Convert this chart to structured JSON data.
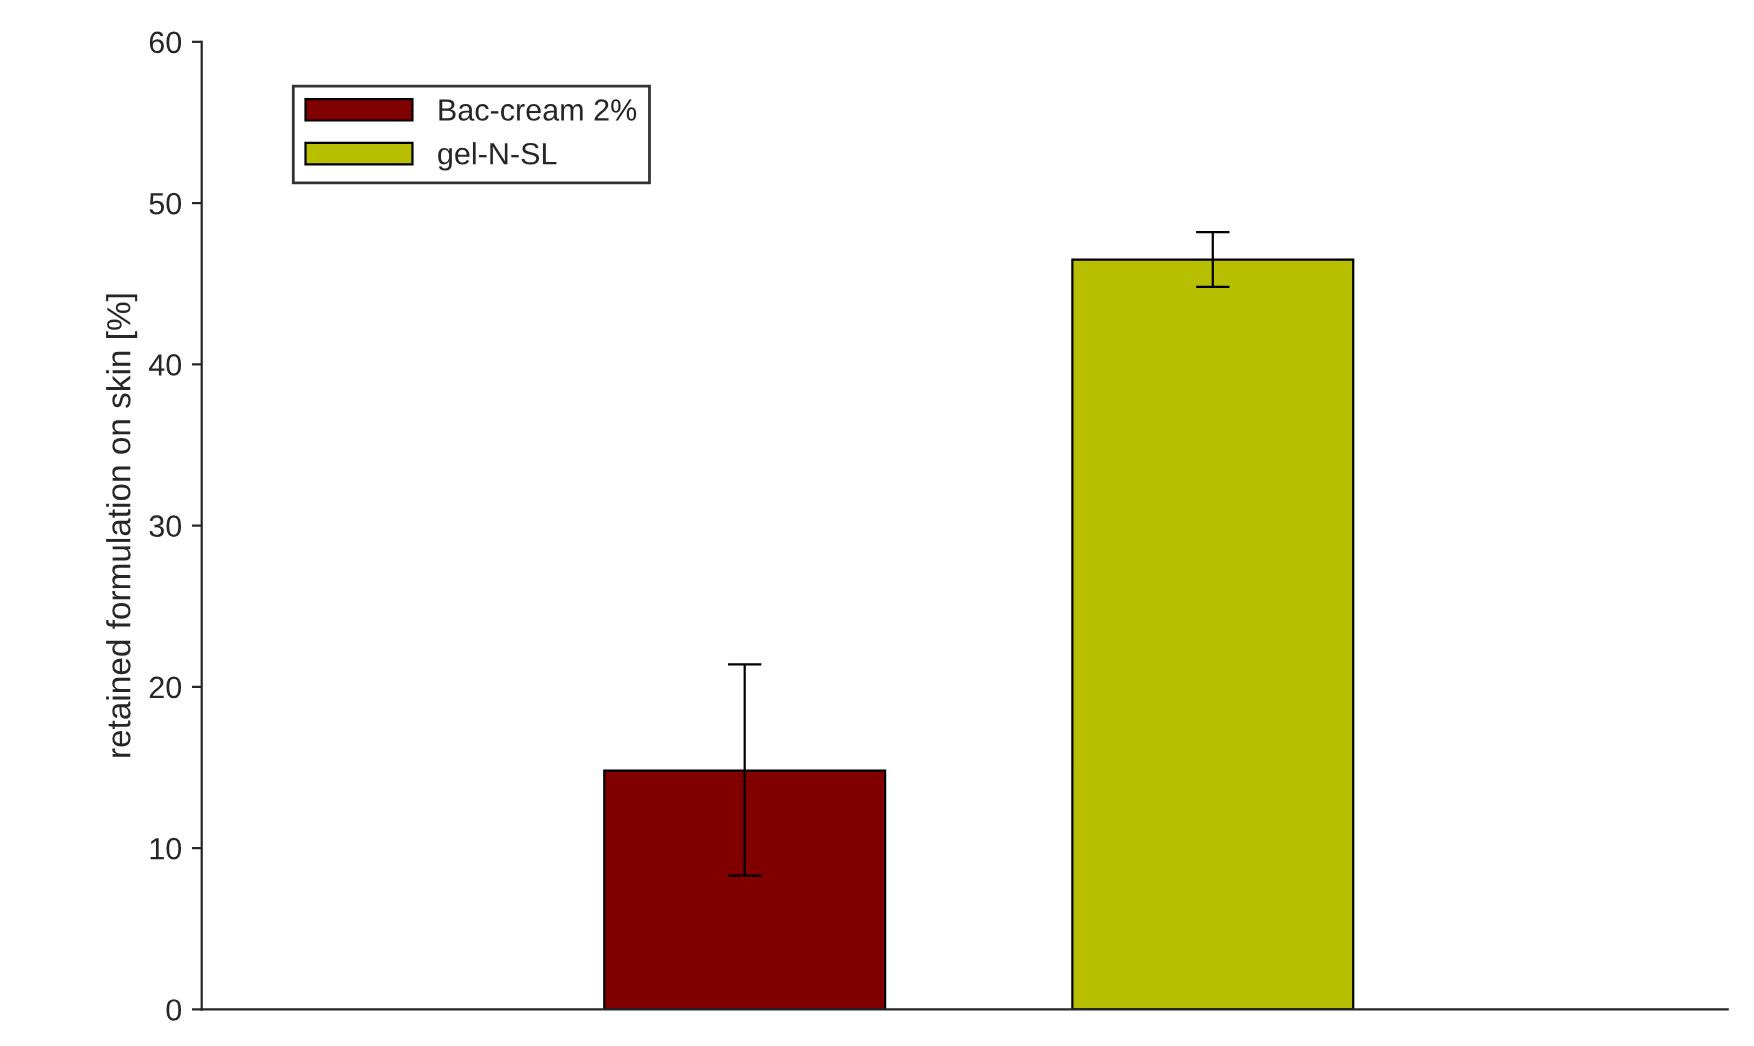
{
  "chart_data": {
    "type": "bar",
    "ylabel": "retained formulation on skin [%]",
    "categories": [
      null,
      null
    ],
    "series": [
      {
        "name": "Bac-cream 2%",
        "color": "#800000",
        "values": [
          14.8,
          null
        ],
        "errors": [
          [
            8.3,
            21.4
          ],
          null
        ]
      },
      {
        "name": "gel-N-SL",
        "color": "#b8bf00",
        "values": [
          null,
          46.5
        ],
        "errors": [
          null,
          [
            44.8,
            48.2
          ]
        ]
      }
    ],
    "ylim": [
      0,
      60
    ],
    "yticks": [
      0,
      10,
      20,
      30,
      40,
      50,
      60
    ],
    "grid": false,
    "legend": "top left"
  }
}
